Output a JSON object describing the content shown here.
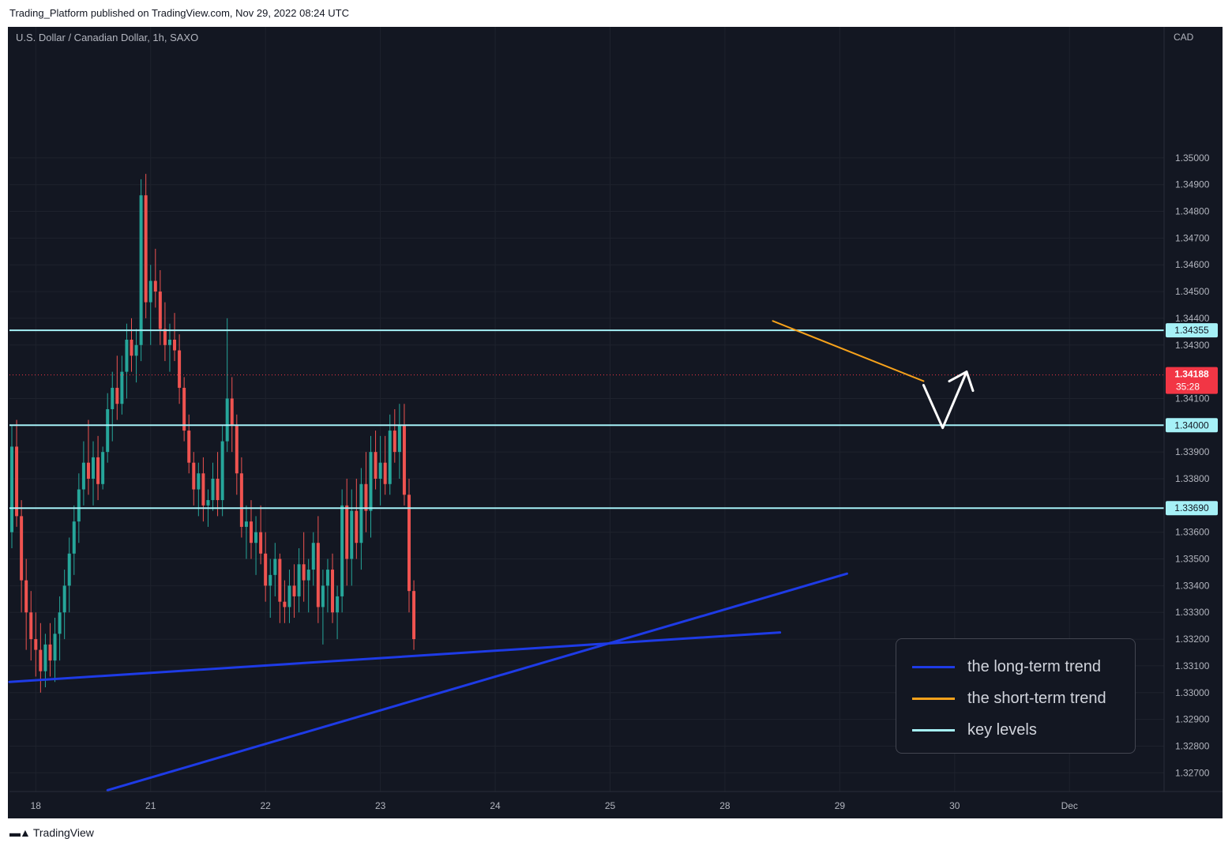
{
  "header": {
    "published": "Trading_Platform published on TradingView.com, Nov 29, 2022 08:24 UTC"
  },
  "footer": {
    "brand": "TradingView",
    "logo_icon": "tradingview-logo-icon"
  },
  "colors": {
    "background": "#131722",
    "grid": "#1e222d",
    "up": "#26a69a",
    "down": "#ef5350",
    "long_trend": "#1e3be6",
    "short_trend": "#f7a21b",
    "key_level": "#a6f1f7",
    "price_tag": "#f23645",
    "text": "#b2b5be",
    "forecast": "#ffffff"
  },
  "chart_data": {
    "type": "candlestick",
    "title": "U.S. Dollar / Canadian Dollar, 1h, SAXO",
    "currency_label": "CAD",
    "ylim": [
      1.3263,
      1.3549
    ],
    "y_ticks": [
      "1.35000",
      "1.34900",
      "1.34800",
      "1.34700",
      "1.34600",
      "1.34500",
      "1.34400",
      "1.34300",
      "1.34100",
      "1.33900",
      "1.33800",
      "1.33600",
      "1.33500",
      "1.33400",
      "1.33300",
      "1.33200",
      "1.33100",
      "1.33000",
      "1.32900",
      "1.32800",
      "1.32700"
    ],
    "x_ticks": [
      {
        "label": "18",
        "bar": 5
      },
      {
        "label": "21",
        "bar": 29
      },
      {
        "label": "22",
        "bar": 53
      },
      {
        "label": "23",
        "bar": 77
      },
      {
        "label": "24",
        "bar": 101
      },
      {
        "label": "25",
        "bar": 125
      },
      {
        "label": "28",
        "bar": 149
      },
      {
        "label": "29",
        "bar": 173
      },
      {
        "label": "30",
        "bar": 197
      },
      {
        "label": "Dec",
        "bar": 221
      }
    ],
    "current_price": {
      "value": 1.34188,
      "label": "1.34188",
      "countdown": "35:28"
    },
    "key_levels": [
      {
        "value": 1.34355,
        "label": "1.34355"
      },
      {
        "value": 1.34,
        "label": "1.34000"
      },
      {
        "value": 1.3369,
        "label": "1.33690"
      }
    ],
    "trend_lines": [
      {
        "name": "the long-term trend",
        "from": {
          "bar": -0.5,
          "price": 1.3304
        },
        "to": {
          "bar": 160.5,
          "price": 1.33225
        }
      },
      {
        "name": "the long-term trend",
        "from": {
          "bar": 20,
          "price": 1.32635
        },
        "to": {
          "bar": 174.5,
          "price": 1.33445
        }
      },
      {
        "name": "the short-term trend",
        "from": {
          "bar": 159,
          "price": 1.3439
        },
        "to": {
          "bar": 190.5,
          "price": 1.34165
        }
      }
    ],
    "forecast_path": [
      {
        "bar": 190.5,
        "price": 1.3415
      },
      {
        "bar": 194.5,
        "price": 1.3399
      },
      {
        "bar": 199.5,
        "price": 1.342
      }
    ],
    "legend_placement": "bottom-right",
    "legend": [
      {
        "label": "the long-term trend",
        "color": "#1e3be6"
      },
      {
        "label": "the short-term trend",
        "color": "#f7a21b"
      },
      {
        "label": "key levels",
        "color": "#a6f1f7"
      }
    ],
    "candles": [
      [
        1.336,
        1.34,
        1.3354,
        1.3392
      ],
      [
        1.3392,
        1.3402,
        1.3362,
        1.3366
      ],
      [
        1.3366,
        1.3372,
        1.333,
        1.3342
      ],
      [
        1.3342,
        1.335,
        1.3316,
        1.333
      ],
      [
        1.333,
        1.3338,
        1.3312,
        1.332
      ],
      [
        1.332,
        1.333,
        1.3306,
        1.3316
      ],
      [
        1.3316,
        1.3326,
        1.33,
        1.3308
      ],
      [
        1.3308,
        1.3322,
        1.3302,
        1.3318
      ],
      [
        1.3318,
        1.3326,
        1.3306,
        1.3312
      ],
      [
        1.3312,
        1.3328,
        1.3304,
        1.3322
      ],
      [
        1.3322,
        1.3336,
        1.3312,
        1.333
      ],
      [
        1.333,
        1.3346,
        1.332,
        1.334
      ],
      [
        1.334,
        1.3358,
        1.333,
        1.3352
      ],
      [
        1.3352,
        1.337,
        1.3344,
        1.3364
      ],
      [
        1.3364,
        1.3382,
        1.3356,
        1.3376
      ],
      [
        1.3376,
        1.3394,
        1.337,
        1.3386
      ],
      [
        1.3386,
        1.3402,
        1.3374,
        1.338
      ],
      [
        1.338,
        1.3394,
        1.337,
        1.3388
      ],
      [
        1.3388,
        1.3396,
        1.3372,
        1.3378
      ],
      [
        1.3378,
        1.3392,
        1.3376,
        1.339
      ],
      [
        1.339,
        1.3412,
        1.3386,
        1.3406
      ],
      [
        1.3406,
        1.342,
        1.3394,
        1.3414
      ],
      [
        1.3414,
        1.3426,
        1.3402,
        1.3408
      ],
      [
        1.3408,
        1.3426,
        1.3404,
        1.342
      ],
      [
        1.342,
        1.3438,
        1.341,
        1.3432
      ],
      [
        1.3432,
        1.344,
        1.342,
        1.3426
      ],
      [
        1.3426,
        1.3436,
        1.3416,
        1.343
      ],
      [
        1.343,
        1.3492,
        1.3424,
        1.3486
      ],
      [
        1.3486,
        1.3494,
        1.344,
        1.3446
      ],
      [
        1.3446,
        1.346,
        1.343,
        1.3454
      ],
      [
        1.3454,
        1.3466,
        1.3444,
        1.345
      ],
      [
        1.345,
        1.3458,
        1.343,
        1.3436
      ],
      [
        1.3436,
        1.3446,
        1.3424,
        1.343
      ],
      [
        1.343,
        1.3438,
        1.342,
        1.3432
      ],
      [
        1.3432,
        1.3442,
        1.3424,
        1.3428
      ],
      [
        1.3428,
        1.3434,
        1.3408,
        1.3414
      ],
      [
        1.3414,
        1.3418,
        1.3394,
        1.3398
      ],
      [
        1.3398,
        1.3404,
        1.3382,
        1.3386
      ],
      [
        1.3386,
        1.339,
        1.337,
        1.3376
      ],
      [
        1.3376,
        1.3386,
        1.3366,
        1.3382
      ],
      [
        1.3382,
        1.3388,
        1.3364,
        1.337
      ],
      [
        1.337,
        1.3376,
        1.3362,
        1.3372
      ],
      [
        1.3372,
        1.3386,
        1.3368,
        1.338
      ],
      [
        1.338,
        1.339,
        1.3366,
        1.3372
      ],
      [
        1.3372,
        1.34,
        1.3366,
        1.3394
      ],
      [
        1.3394,
        1.344,
        1.339,
        1.341
      ],
      [
        1.341,
        1.3418,
        1.339,
        1.34
      ],
      [
        1.34,
        1.3404,
        1.3374,
        1.3382
      ],
      [
        1.3382,
        1.3388,
        1.3358,
        1.3362
      ],
      [
        1.3362,
        1.337,
        1.335,
        1.3364
      ],
      [
        1.3364,
        1.3372,
        1.335,
        1.3356
      ],
      [
        1.3356,
        1.3366,
        1.3344,
        1.336
      ],
      [
        1.336,
        1.337,
        1.3348,
        1.3352
      ],
      [
        1.3352,
        1.336,
        1.3334,
        1.334
      ],
      [
        1.334,
        1.335,
        1.3328,
        1.3344
      ],
      [
        1.3344,
        1.3356,
        1.3336,
        1.335
      ],
      [
        1.335,
        1.3352,
        1.3326,
        1.3334
      ],
      [
        1.3334,
        1.3342,
        1.3326,
        1.3332
      ],
      [
        1.3332,
        1.3346,
        1.3326,
        1.334
      ],
      [
        1.334,
        1.3348,
        1.3328,
        1.3336
      ],
      [
        1.3336,
        1.3354,
        1.333,
        1.3348
      ],
      [
        1.3348,
        1.336,
        1.3334,
        1.3342
      ],
      [
        1.3342,
        1.335,
        1.333,
        1.3346
      ],
      [
        1.3346,
        1.336,
        1.334,
        1.3356
      ],
      [
        1.3356,
        1.3366,
        1.3326,
        1.3332
      ],
      [
        1.3332,
        1.3346,
        1.3318,
        1.334
      ],
      [
        1.334,
        1.335,
        1.333,
        1.3346
      ],
      [
        1.3346,
        1.3352,
        1.3326,
        1.333
      ],
      [
        1.333,
        1.334,
        1.332,
        1.3336
      ],
      [
        1.3336,
        1.3376,
        1.333,
        1.337
      ],
      [
        1.337,
        1.338,
        1.334,
        1.335
      ],
      [
        1.335,
        1.3376,
        1.334,
        1.3368
      ],
      [
        1.3368,
        1.338,
        1.335,
        1.3356
      ],
      [
        1.3356,
        1.3384,
        1.3346,
        1.3378
      ],
      [
        1.3378,
        1.339,
        1.336,
        1.3368
      ],
      [
        1.3368,
        1.3396,
        1.3358,
        1.339
      ],
      [
        1.339,
        1.3398,
        1.3376,
        1.338
      ],
      [
        1.338,
        1.3396,
        1.337,
        1.3386
      ],
      [
        1.3386,
        1.3396,
        1.3374,
        1.3378
      ],
      [
        1.3378,
        1.3404,
        1.3374,
        1.3398
      ],
      [
        1.3398,
        1.3406,
        1.3386,
        1.339
      ],
      [
        1.339,
        1.3408,
        1.338,
        1.34
      ],
      [
        1.34,
        1.3408,
        1.337,
        1.3374
      ],
      [
        1.3374,
        1.338,
        1.333,
        1.3338
      ],
      [
        1.3338,
        1.3342,
        1.3316,
        1.332
      ]
    ]
  }
}
